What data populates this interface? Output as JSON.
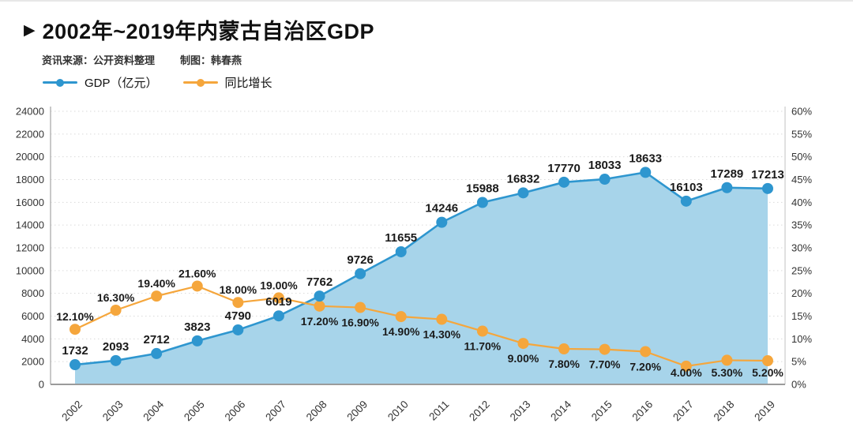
{
  "header": {
    "marker": "▶",
    "title": "2002年~2019年内蒙古自治区GDP",
    "source_label": "资讯来源：公开资料整理",
    "credit_label": "制图：韩春燕"
  },
  "chart_data": {
    "type": "line",
    "title": "2002年~2019年内蒙古自治区GDP",
    "legend_position": "top-left",
    "grid": {
      "horizontal": true,
      "style": "dotted"
    },
    "categories": [
      "2002",
      "2003",
      "2004",
      "2005",
      "2006",
      "2007",
      "2008",
      "2009",
      "2010",
      "2011",
      "2012",
      "2013",
      "2014",
      "2015",
      "2016",
      "2017",
      "2018",
      "2019"
    ],
    "series": [
      {
        "name": "GDP（亿元）",
        "axis": "left",
        "style": "area-line",
        "color": "#2E96CF",
        "fill": "#A7D4EA",
        "values": [
          1732,
          2093,
          2712,
          3823,
          4790,
          6019,
          7762,
          9726,
          11655,
          14246,
          15988,
          16832,
          17770,
          18033,
          18633,
          16103,
          17289,
          17213
        ],
        "point_labels": [
          "1732",
          "2093",
          "2712",
          "3823",
          "4790",
          "6019",
          "7762",
          "9726",
          "11655",
          "14246",
          "15988",
          "16832",
          "17770",
          "18033",
          "18633",
          "16103",
          "17289",
          "17213"
        ]
      },
      {
        "name": "同比增长",
        "axis": "right",
        "style": "line",
        "color": "#F5A63C",
        "values": [
          12.1,
          16.3,
          19.4,
          21.6,
          18.0,
          19.0,
          17.2,
          16.9,
          14.9,
          14.3,
          11.7,
          9.0,
          7.8,
          7.7,
          7.2,
          4.0,
          5.3,
          5.2
        ],
        "point_labels": [
          "12.10%",
          "16.30%",
          "19.40%",
          "21.60%",
          "18.00%",
          "19.00%",
          "17.20%",
          "16.90%",
          "14.90%",
          "14.30%",
          "11.70%",
          "9.00%",
          "7.80%",
          "7.70%",
          "7.20%",
          "4.00%",
          "5.30%",
          "5.20%"
        ],
        "label_positions": [
          "above",
          "above",
          "above",
          "above",
          "above",
          "above",
          "below",
          "below",
          "below",
          "below",
          "below",
          "below",
          "below",
          "below",
          "below",
          "below",
          "below",
          "below"
        ]
      }
    ],
    "left_axis": {
      "min": 0,
      "max": 24000,
      "step": 2000,
      "tick_labels": [
        "0",
        "2000",
        "4000",
        "6000",
        "8000",
        "10000",
        "12000",
        "14000",
        "16000",
        "18000",
        "20000",
        "22000",
        "24000"
      ]
    },
    "right_axis": {
      "min": 0,
      "max": 60,
      "step": 5,
      "tick_labels": [
        "0%",
        "5%",
        "10%",
        "15%",
        "20%",
        "25%",
        "30%",
        "35%",
        "40%",
        "45%",
        "50%",
        "55%",
        "60%"
      ]
    }
  }
}
